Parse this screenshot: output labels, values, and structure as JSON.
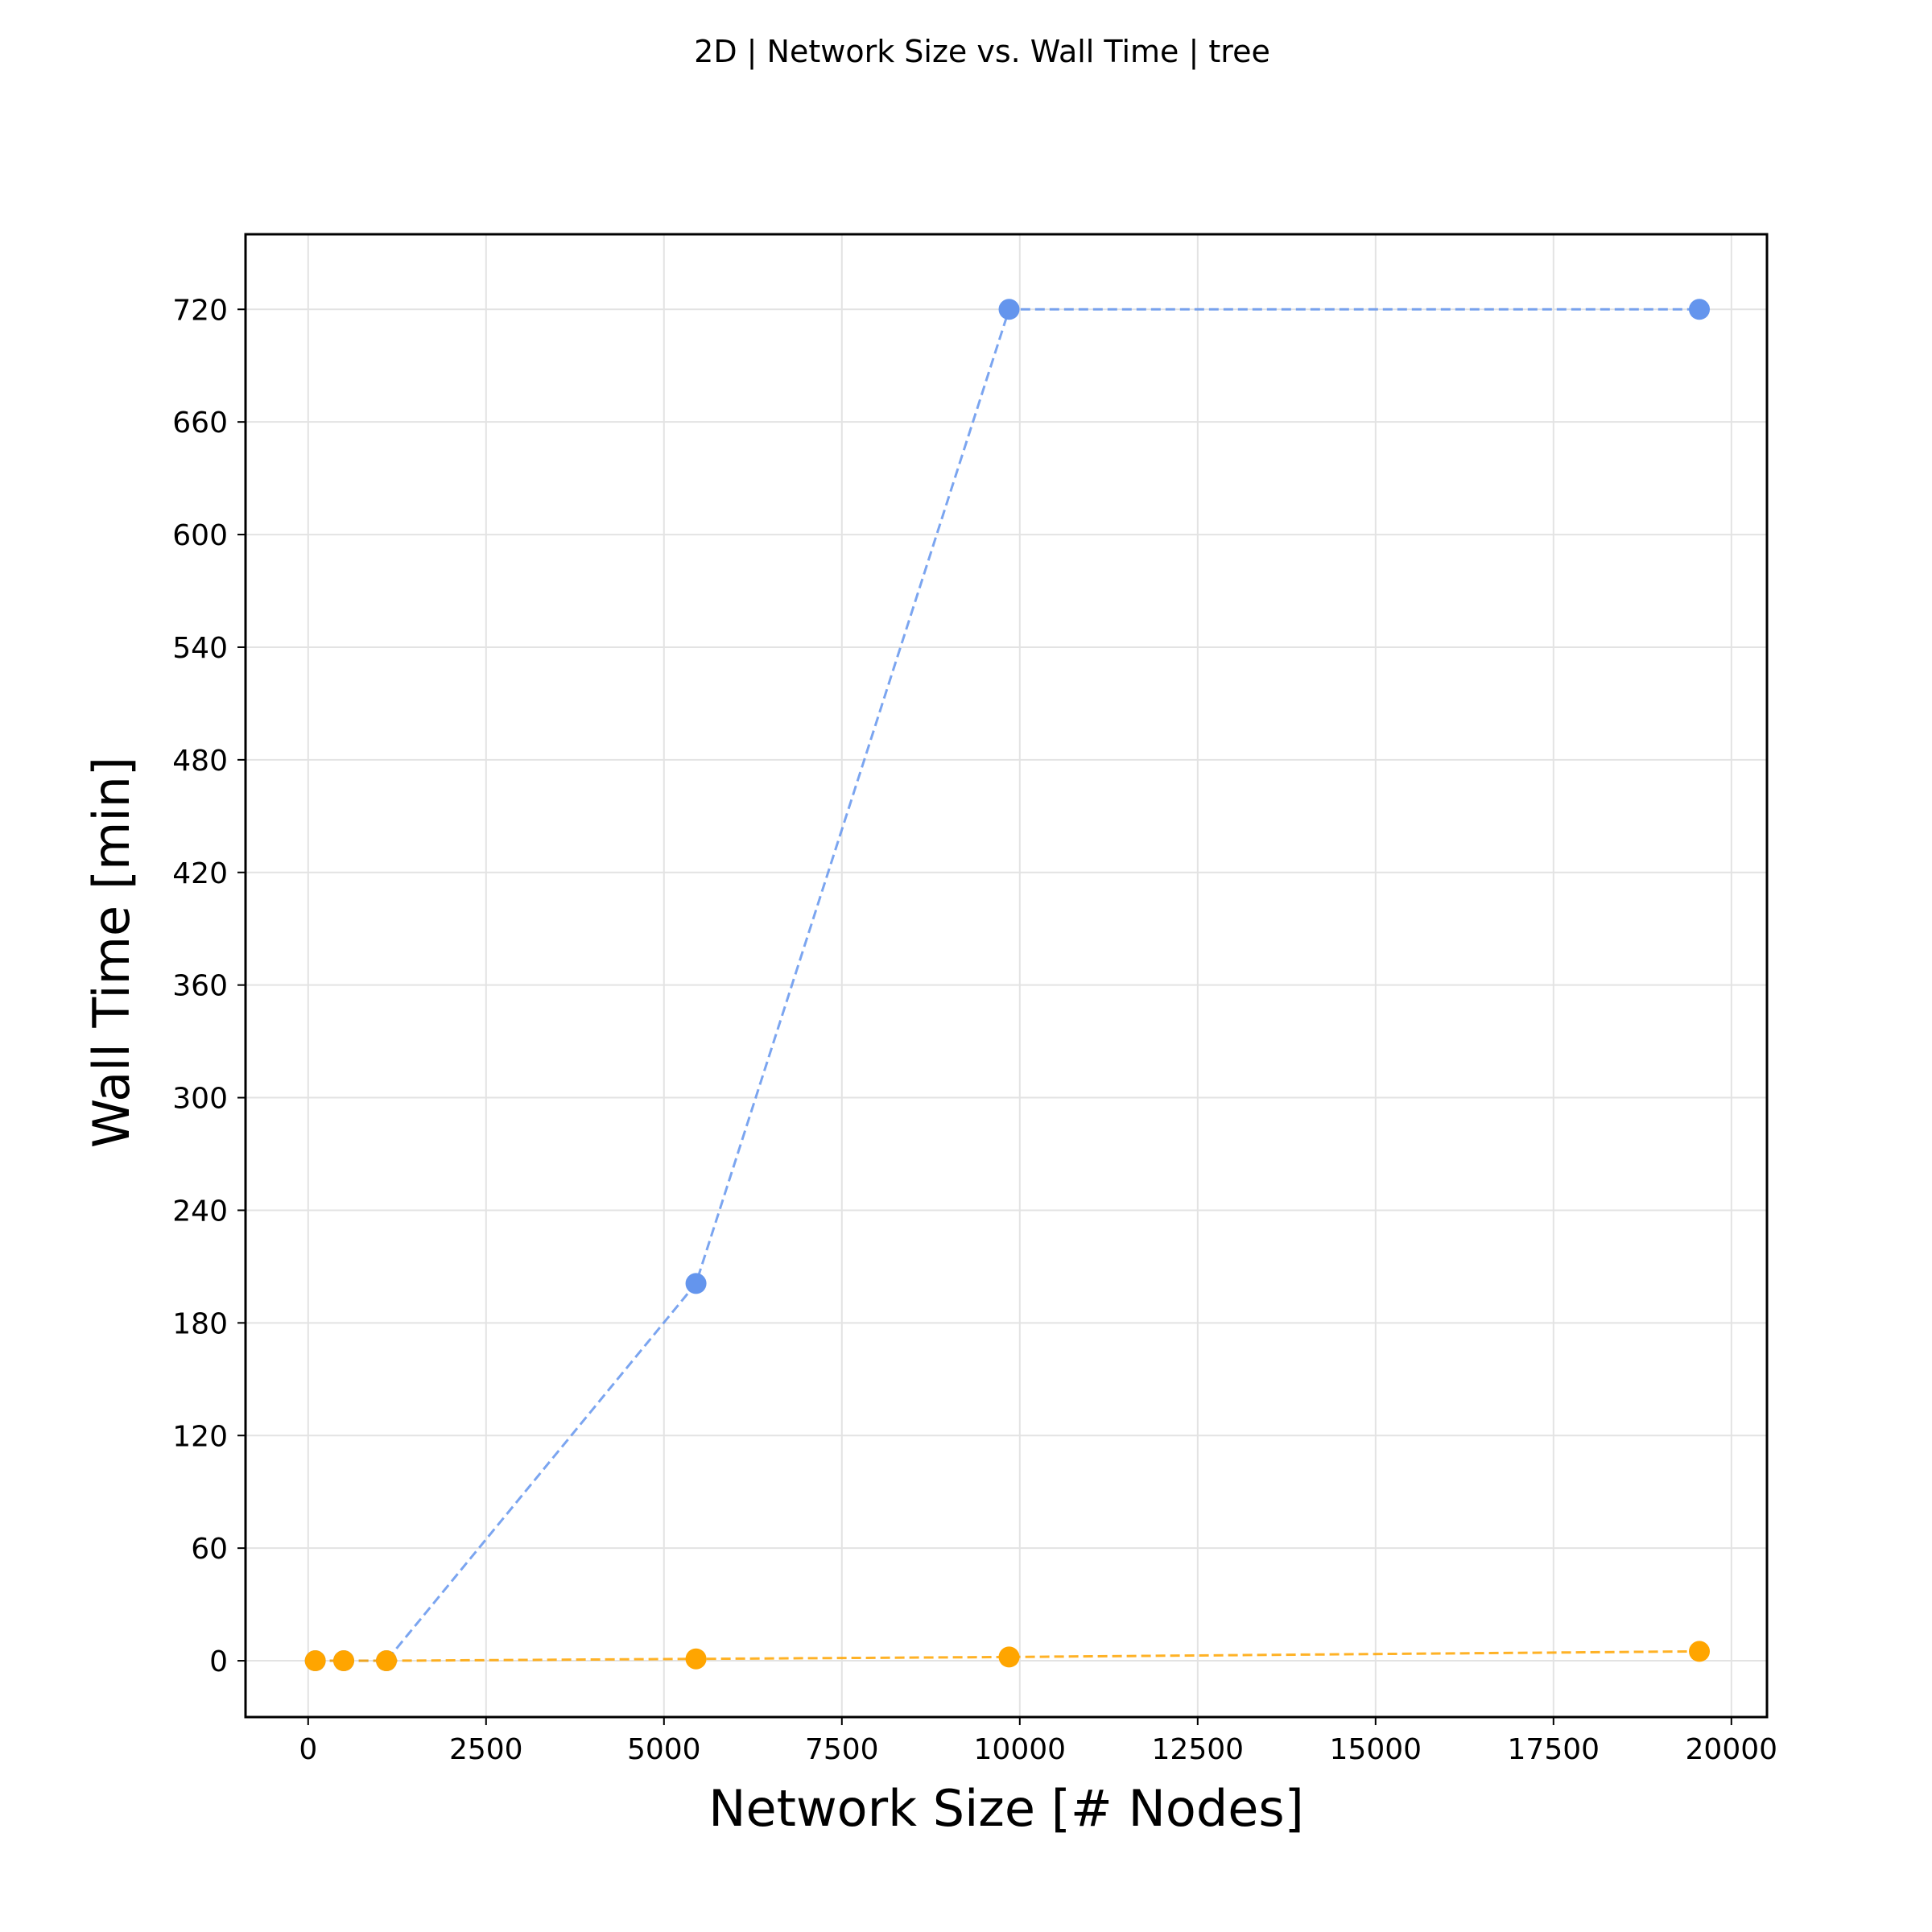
{
  "chart_data": {
    "type": "line",
    "title": "2D | Network Size vs. Wall Time | tree",
    "xlabel": "Network Size [# Nodes]",
    "ylabel": "Wall Time [min]",
    "xlim": [
      -880,
      20500
    ],
    "ylim": [
      -30,
      760
    ],
    "xticks": [
      0,
      2500,
      5000,
      7500,
      10000,
      12500,
      15000,
      17500,
      20000
    ],
    "yticks": [
      0,
      60,
      120,
      180,
      240,
      300,
      360,
      420,
      480,
      540,
      600,
      660,
      720
    ],
    "grid": true,
    "line_style": "dashed",
    "marker": "circle",
    "series": [
      {
        "color": "#6495ED",
        "x": [
          100,
          500,
          1100,
          5450,
          9850,
          19550
        ],
        "y": [
          0,
          0,
          0,
          201,
          720,
          720
        ]
      },
      {
        "color": "#FFA500",
        "x": [
          100,
          500,
          1100,
          5450,
          9850,
          19550
        ],
        "y": [
          0,
          0,
          0,
          1,
          2,
          5
        ]
      }
    ]
  }
}
